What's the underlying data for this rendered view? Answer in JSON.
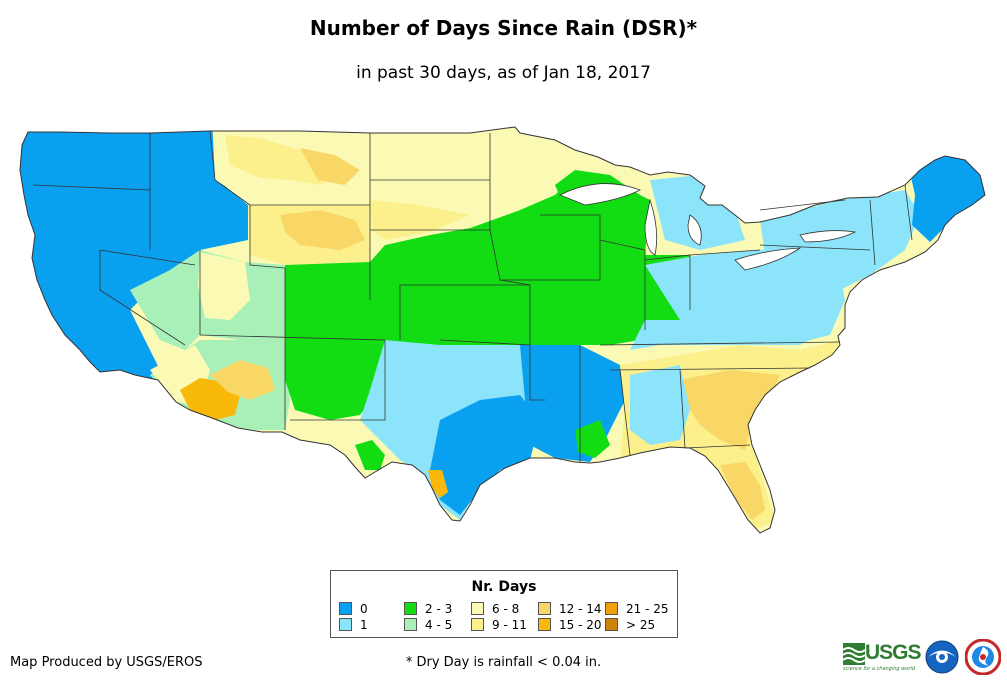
{
  "header": {
    "title": "Number of Days Since Rain (DSR)*",
    "subtitle": "in past 30 days, as of Jan 18, 2017"
  },
  "legend": {
    "title": "Nr. Days",
    "items": [
      {
        "label": "0",
        "color": "#0aa0f0"
      },
      {
        "label": "1",
        "color": "#8ce4fa"
      },
      {
        "label": "2 - 3",
        "color": "#12dc12"
      },
      {
        "label": "4 - 5",
        "color": "#a8f0b8"
      },
      {
        "label": "6 - 8",
        "color": "#fafab4"
      },
      {
        "label": "9 - 11",
        "color": "#fbf08c"
      },
      {
        "label": "12 - 14",
        "color": "#f9d766"
      },
      {
        "label": "15 - 20",
        "color": "#f8b90a"
      },
      {
        "label": "21 - 25",
        "color": "#f0a00a"
      },
      {
        "label": "> 25",
        "color": "#cd820a"
      }
    ]
  },
  "footer": {
    "credit": "Map Produced by USGS/EROS",
    "footnote": "* Dry Day is rainfall < 0.04 in.",
    "usgs_logo": "USGS",
    "usgs_tagline": "science for a changing world"
  },
  "icons": {
    "noaa": "noaa-logo-icon",
    "nws": "national-weather-service-logo-icon"
  }
}
